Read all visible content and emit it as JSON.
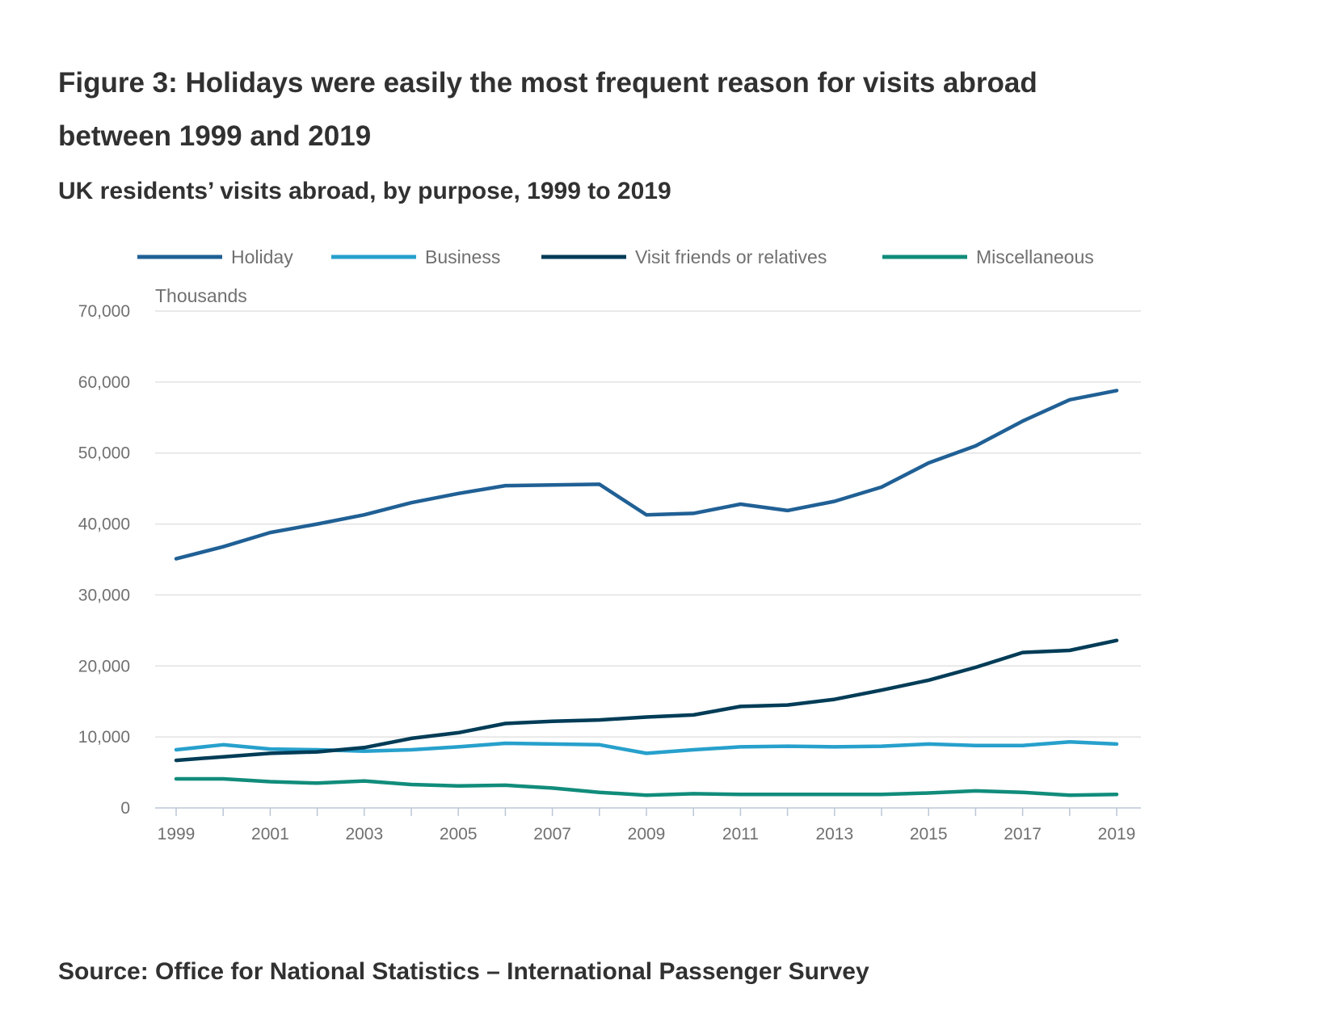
{
  "figure": {
    "title": "Figure 3: Holidays were easily the most frequent reason for visits abroad between 1999 and 2019",
    "subtitle": "UK residents’ visits abroad, by purpose, 1999 to 2019",
    "source": "Source: Office for National Statistics – International Passenger Survey"
  },
  "chart_data": {
    "type": "line",
    "title": "Figure 3: Holidays were easily the most frequent reason for visits abroad between 1999 and 2019",
    "subtitle": "UK residents’ visits abroad, by purpose, 1999 to 2019",
    "ylabel": "Thousands",
    "xlabel": "",
    "ylim": [
      0,
      70000
    ],
    "yticks": [
      0,
      10000,
      20000,
      30000,
      40000,
      50000,
      60000,
      70000
    ],
    "ytick_labels": [
      "0",
      "10,000",
      "20,000",
      "30,000",
      "40,000",
      "50,000",
      "60,000",
      "70,000"
    ],
    "xtick_labels": [
      "1999",
      "2001",
      "2003",
      "2005",
      "2007",
      "2009",
      "2011",
      "2013",
      "2015",
      "2017",
      "2019"
    ],
    "x": [
      1999,
      2000,
      2001,
      2002,
      2003,
      2004,
      2005,
      2006,
      2007,
      2008,
      2009,
      2010,
      2011,
      2012,
      2013,
      2014,
      2015,
      2016,
      2017,
      2018,
      2019
    ],
    "grid": true,
    "legend_position": "top",
    "series": [
      {
        "name": "Holiday",
        "color": "#206095",
        "values": [
          35100,
          36800,
          38800,
          40000,
          41300,
          43000,
          44300,
          45400,
          45500,
          45600,
          41300,
          41500,
          42800,
          41900,
          43200,
          45200,
          48600,
          51000,
          54500,
          57500,
          58800
        ]
      },
      {
        "name": "Business",
        "color": "#27a0cc",
        "values": [
          8200,
          8900,
          8300,
          8200,
          8000,
          8200,
          8600,
          9100,
          9000,
          8900,
          7700,
          8200,
          8600,
          8700,
          8600,
          8700,
          9000,
          8800,
          8800,
          9300,
          9000
        ]
      },
      {
        "name": "Visit friends or relatives",
        "color": "#003c57",
        "values": [
          6700,
          7200,
          7700,
          7900,
          8500,
          9800,
          10600,
          11900,
          12200,
          12400,
          12800,
          13100,
          14300,
          14500,
          15300,
          16600,
          18000,
          19800,
          21900,
          22200,
          23600
        ]
      },
      {
        "name": "Miscellaneous",
        "color": "#118c7b",
        "values": [
          4100,
          4100,
          3700,
          3500,
          3800,
          3300,
          3100,
          3200,
          2800,
          2200,
          1800,
          2000,
          1900,
          1900,
          1900,
          1900,
          2100,
          2400,
          2200,
          1800,
          1900
        ]
      }
    ]
  }
}
